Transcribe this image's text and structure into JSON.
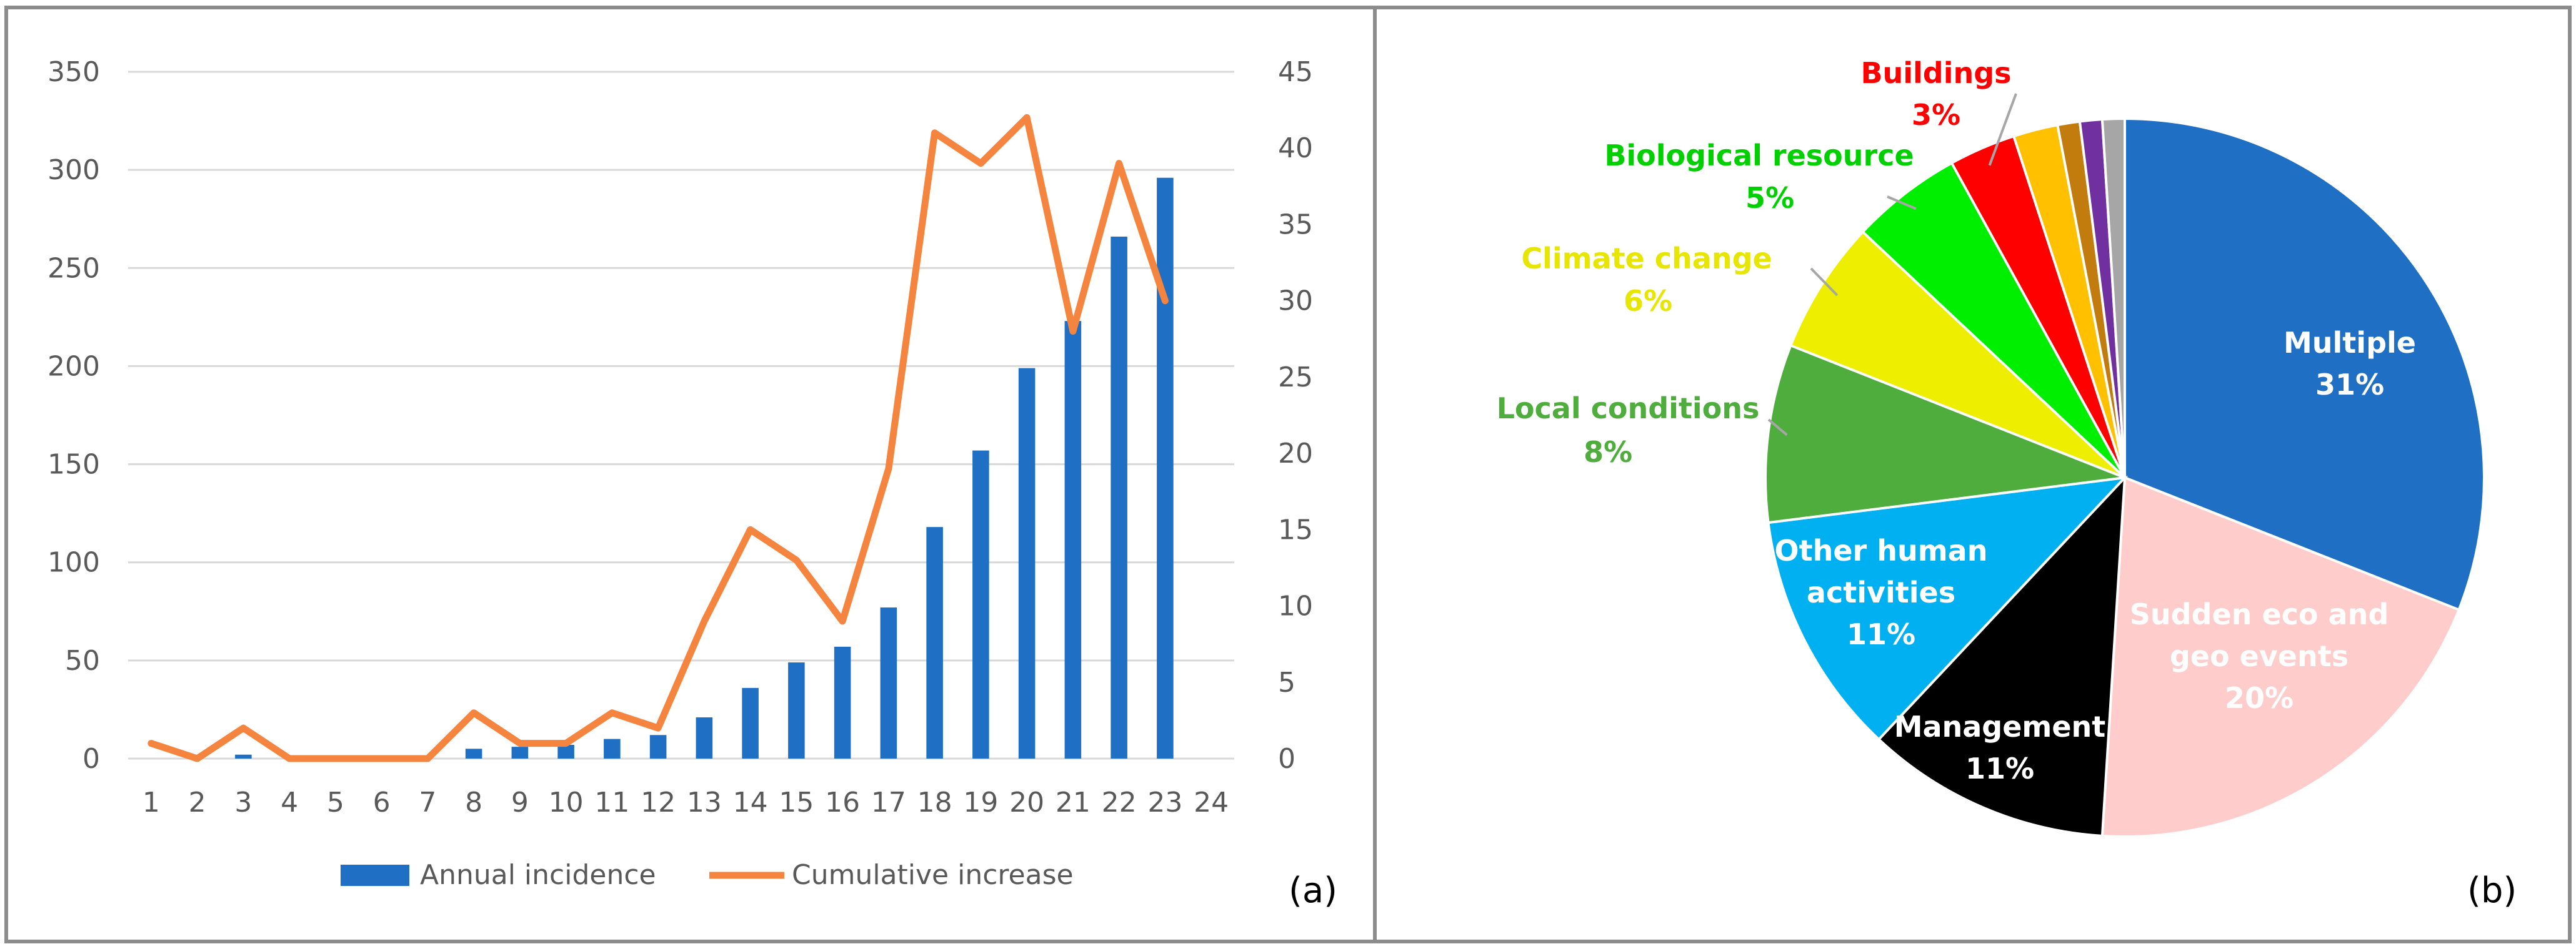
{
  "chart_data": [
    {
      "type": "bar+line",
      "panel_label": "(a)",
      "categories": [
        "1",
        "2",
        "3",
        "4",
        "5",
        "6",
        "7",
        "8",
        "9",
        "10",
        "11",
        "12",
        "13",
        "14",
        "15",
        "16",
        "17",
        "18",
        "19",
        "20",
        "21",
        "22",
        "23",
        "24"
      ],
      "series": [
        {
          "name": "Annual incidence",
          "kind": "bar",
          "axis": "left",
          "color": "#1f6fc5",
          "values": [
            0,
            0,
            2,
            0,
            0,
            0,
            0,
            5,
            6,
            7,
            10,
            12,
            21,
            36,
            49,
            57,
            77,
            118,
            157,
            199,
            223,
            266,
            296,
            null
          ]
        },
        {
          "name": "Cumulative increase",
          "kind": "line",
          "axis": "right",
          "color": "#f4843e",
          "values": [
            1,
            0,
            2,
            0,
            0,
            0,
            0,
            3,
            1,
            1,
            3,
            2,
            9,
            15,
            13,
            9,
            19,
            41,
            39,
            42,
            28,
            39,
            30,
            null
          ]
        }
      ],
      "y_left": {
        "range": [
          0,
          350
        ],
        "ticks": [
          0,
          50,
          100,
          150,
          200,
          250,
          300,
          350
        ]
      },
      "y_right": {
        "range": [
          0,
          45
        ],
        "ticks": [
          0,
          5,
          10,
          15,
          20,
          25,
          30,
          35,
          40,
          45
        ]
      },
      "grid": true,
      "legend_position": "bottom"
    },
    {
      "type": "pie",
      "panel_label": "(b)",
      "slices": [
        {
          "label": "Multiple",
          "value": 31,
          "pct_text": "31%",
          "color": "#1f6fc5",
          "text_color": "#ffffff"
        },
        {
          "label": "Sudden eco and geo events",
          "label_lines": [
            "Sudden eco and",
            "geo events"
          ],
          "value": 20,
          "pct_text": "20%",
          "color": "#ffcccc",
          "text_color": "#ffffff"
        },
        {
          "label": "Management",
          "value": 11,
          "pct_text": "11%",
          "color": "#000000",
          "text_color": "#ffffff"
        },
        {
          "label": "Other human activities",
          "label_lines": [
            "Other human",
            "activities"
          ],
          "value": 11,
          "pct_text": "11%",
          "color": "#00b0f0",
          "text_color": "#ffffff"
        },
        {
          "label": "Local conditions",
          "value": 8,
          "pct_text": "8%",
          "color": "#4ead3c",
          "text_color": "#4ead3c"
        },
        {
          "label": "Climate change",
          "value": 6,
          "pct_text": "6%",
          "color": "#eeee00",
          "text_color": "#e6e600"
        },
        {
          "label": "Biological resource",
          "value": 5,
          "pct_text": "5%",
          "color": "#00ee00",
          "text_color": "#00d000"
        },
        {
          "label": "Buildings",
          "value": 3,
          "pct_text": "3%",
          "color": "#ff0000",
          "text_color": "#ff0000"
        },
        {
          "label": "",
          "value": 2,
          "pct_text": "",
          "color": "#ffc000"
        },
        {
          "label": "",
          "value": 1,
          "pct_text": "",
          "color": "#c27c0e"
        },
        {
          "label": "",
          "value": 1,
          "pct_text": "",
          "color": "#7030a0"
        },
        {
          "label": "",
          "value": 1,
          "pct_text": "",
          "color": "#a6a6a6"
        }
      ]
    }
  ]
}
